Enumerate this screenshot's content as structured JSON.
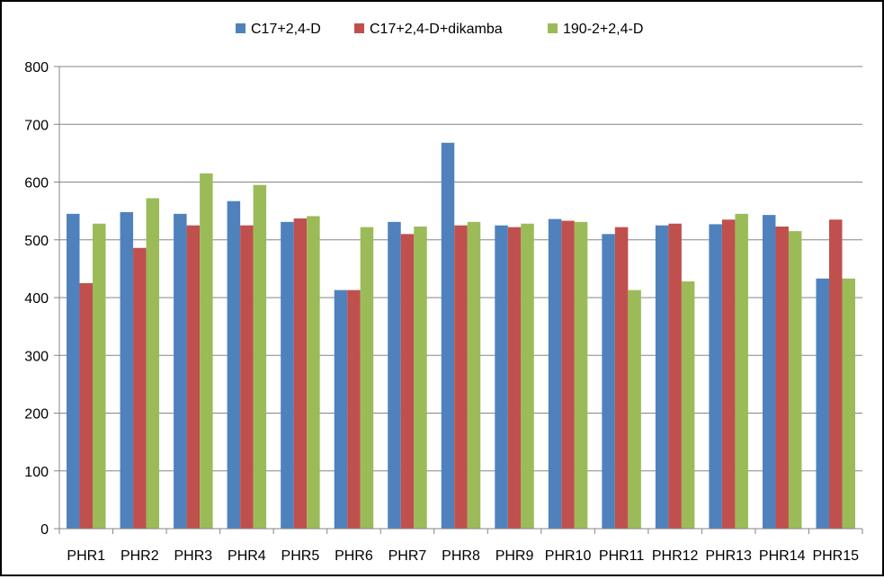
{
  "chart_data": {
    "type": "bar",
    "title": "",
    "xlabel": "",
    "ylabel": "",
    "ylim": [
      0,
      800
    ],
    "yticks": [
      "0",
      "100",
      "200",
      "300",
      "400",
      "500",
      "600",
      "700",
      "800"
    ],
    "grid": true,
    "legend_position": "top",
    "categories": [
      "PHR1",
      "PHR2",
      "PHR3",
      "PHR4",
      "PHR5",
      "PHR6",
      "PHR7",
      "PHR8",
      "PHR9",
      "PHR10",
      "PHR11",
      "PHR12",
      "PHR13",
      "PHR14",
      "PHR15"
    ],
    "series": [
      {
        "name": "C17+2,4-D",
        "color": "#4f81bd",
        "values": [
          545,
          548,
          545,
          567,
          531,
          413,
          531,
          668,
          525,
          536,
          510,
          525,
          527,
          543,
          433
        ]
      },
      {
        "name": "C17+2,4-D+dikamba",
        "color": "#c0504d",
        "values": [
          425,
          486,
          525,
          525,
          537,
          413,
          510,
          525,
          522,
          533,
          522,
          528,
          535,
          523,
          535
        ]
      },
      {
        "name": "190-2+2,4-D",
        "color": "#9bbb59",
        "values": [
          528,
          572,
          615,
          595,
          541,
          522,
          523,
          531,
          528,
          531,
          413,
          428,
          545,
          515,
          433
        ]
      }
    ]
  }
}
